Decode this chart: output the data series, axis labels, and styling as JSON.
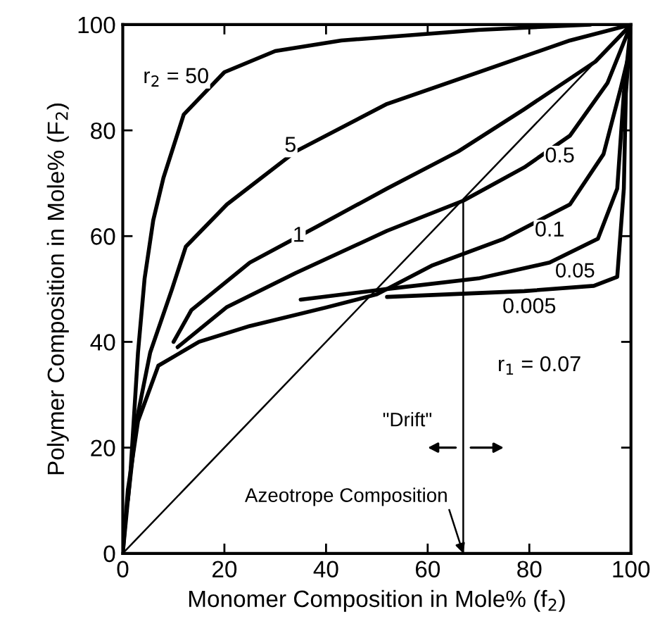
{
  "chart_data": {
    "type": "line",
    "xlabel": "Monomer Composition in Mole% (f$_{2}$)",
    "ylabel": "Polymer Composition in Mole% (F$_{2}$)",
    "xlim": [
      0,
      100
    ],
    "ylim": [
      0,
      100
    ],
    "xticks": [
      0,
      20,
      40,
      60,
      80,
      100
    ],
    "yticks": [
      0,
      20,
      40,
      60,
      80,
      100
    ],
    "grid": false,
    "legend": false,
    "marker": "none",
    "line_style": "solid",
    "series": [
      {
        "name": "r$_{2}$ = 50",
        "color": "#000000",
        "x": [
          0,
          1.5,
          3,
          4.3,
          6,
          8,
          12,
          20,
          30,
          43,
          70,
          92
        ],
        "values": [
          0,
          15,
          38,
          52,
          63,
          71,
          83,
          91,
          95,
          97,
          99,
          100
        ]
      },
      {
        "name": "5",
        "color": "#000000",
        "x": [
          1,
          2.7,
          5.4,
          9.7,
          12.4,
          20.5,
          34,
          52,
          70,
          88,
          100
        ],
        "values": [
          10,
          25,
          38,
          50,
          58,
          66,
          76,
          85,
          91,
          97,
          100
        ]
      },
      {
        "name": "1",
        "color": "#000000",
        "x": [
          10,
          13.5,
          25,
          38.6,
          52,
          66,
          79,
          93,
          100
        ],
        "values": [
          40,
          46,
          55,
          62,
          69,
          76,
          84,
          93,
          100
        ]
      },
      {
        "name": "0.5",
        "color": "#000000",
        "x": [
          10.8,
          20.5,
          34,
          52,
          67,
          79,
          88,
          95.4,
          100
        ],
        "values": [
          39,
          46.6,
          53,
          61,
          66.7,
          73,
          79,
          89,
          100
        ]
      },
      {
        "name": "0.1",
        "color": "#000000",
        "x": [
          0,
          1,
          3,
          7,
          15,
          25,
          40,
          50,
          61,
          75,
          88,
          94.6,
          98,
          100
        ],
        "values": [
          0,
          12,
          25,
          35.5,
          40,
          43,
          46.5,
          49,
          54.5,
          59.5,
          66,
          75.5,
          88,
          96
        ]
      },
      {
        "name": "0.05",
        "color": "#000000",
        "x": [
          35,
          52,
          70,
          84,
          93.5,
          97.3,
          98.6,
          100
        ],
        "values": [
          48,
          50,
          52,
          55,
          59.5,
          69,
          87,
          100
        ]
      },
      {
        "name": "0.005",
        "color": "#000000",
        "x": [
          52,
          79,
          92.7,
          97.3,
          98.6,
          99,
          100
        ],
        "values": [
          48.5,
          49.6,
          50.6,
          52.3,
          69,
          87,
          100
        ]
      },
      {
        "color": "#000000",
        "x": [
          0,
          100
        ],
        "values": [
          0,
          100
        ]
      },
      {
        "color": "#000000",
        "x": [
          67,
          67
        ],
        "values": [
          0,
          66.7
        ]
      }
    ],
    "annotations": [
      "r$_{1}$ = 0.07",
      "\"Drift\"",
      {
        "text": "Azeotrope Composition",
        "x": 67,
        "y": 0
      }
    ]
  }
}
